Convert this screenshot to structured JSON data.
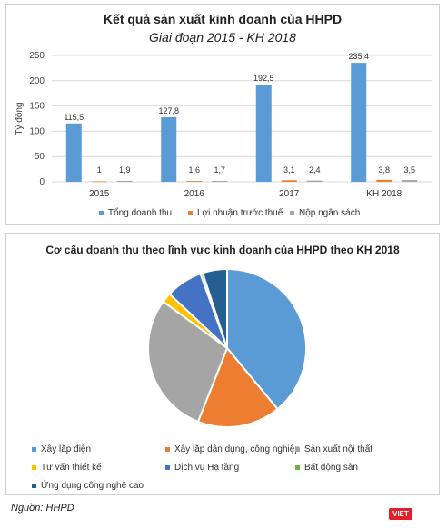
{
  "bar_chart": {
    "title": "Kết quả sản xuất kinh doanh của HHPD",
    "subtitle": "Giai đoạn 2015 - KH 2018"
  },
  "pie_chart": {
    "title": "Cơ cấu doanh thu theo lĩnh vực kinh doanh của HHPD theo KH 2018"
  },
  "source": "Nguồn: HHPD",
  "logo_text": "VIET",
  "chart_data": [
    {
      "type": "bar",
      "title": "Kết quả sản xuất kinh doanh của HHPD",
      "subtitle": "Giai đoạn 2015 - KH 2018",
      "ylabel": "Tỷ đồng",
      "xlabel": "",
      "categories": [
        "2015",
        "2016",
        "2017",
        "KH 2018"
      ],
      "ylim": [
        0,
        250
      ],
      "yticks": [
        0,
        50,
        100,
        150,
        200,
        250
      ],
      "grid": true,
      "legend_position": "bottom",
      "series": [
        {
          "name": "Tổng doanh thu",
          "color": "#5b9bd5",
          "values": [
            115.5,
            127.8,
            192.5,
            235.4
          ],
          "labels": [
            "115,5",
            "127,8",
            "192,5",
            "235,4"
          ]
        },
        {
          "name": "Lợi nhuận trước thuế",
          "color": "#ed7d31",
          "values": [
            1,
            1.6,
            3.1,
            3.8
          ],
          "labels": [
            "1",
            "1,6",
            "3,1",
            "3,8"
          ]
        },
        {
          "name": "Nộp ngân sách",
          "color": "#a5a5a5",
          "values": [
            1.9,
            1.7,
            2.4,
            3.5
          ],
          "labels": [
            "1,9",
            "1,7",
            "2,4",
            "3,5"
          ]
        }
      ]
    },
    {
      "type": "pie",
      "title": "Cơ cấu doanh thu theo lĩnh vực kinh doanh của HHPD theo KH 2018",
      "legend_position": "bottom",
      "slices": [
        {
          "name": "Xây lắp điện",
          "value": 39,
          "color": "#5b9bd5"
        },
        {
          "name": "Xây lắp dân dụng, công nghiệp",
          "value": 17,
          "color": "#ed7d31"
        },
        {
          "name": "Sản xuất nội thất",
          "value": 29,
          "color": "#a5a5a5"
        },
        {
          "name": "Tư vấn thiết kế",
          "value": 2,
          "color": "#ffc000"
        },
        {
          "name": "Dịch vụ Hạ tầng",
          "value": 7.5,
          "color": "#4472c4"
        },
        {
          "name": "Bất động sản",
          "value": 0.5,
          "color": "#70ad47"
        },
        {
          "name": "Ứng dụng công nghệ cao",
          "value": 5,
          "color": "#255e91"
        }
      ]
    }
  ]
}
